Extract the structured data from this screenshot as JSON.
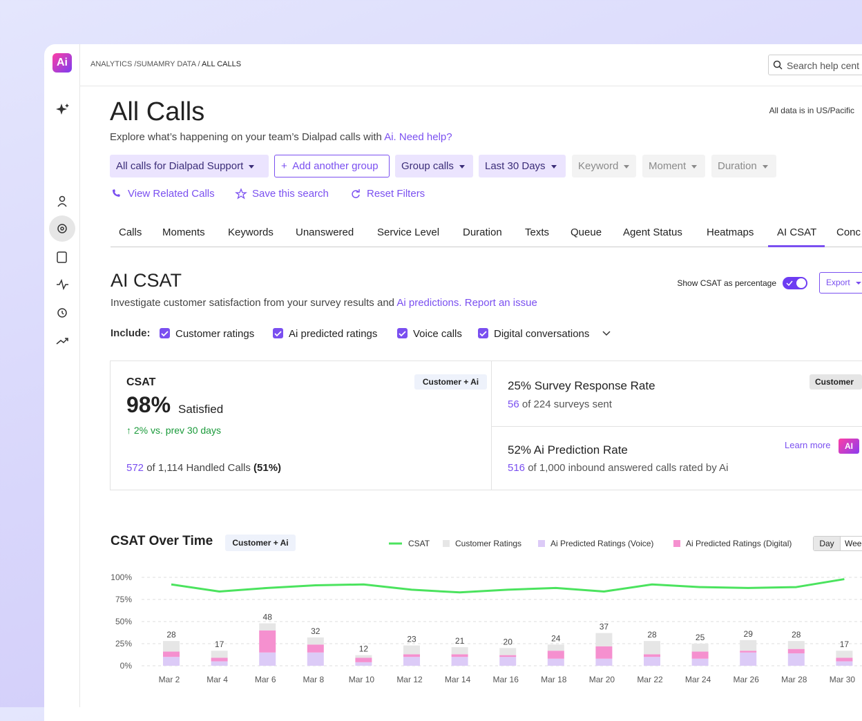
{
  "logo": "Ai",
  "breadcrumb": [
    "ANALYTICS",
    "SUMAMRY DATA",
    "ALL CALLS"
  ],
  "search_placeholder": "Search help cent",
  "header": {
    "title": "All Calls",
    "subtitle": "Explore what’s happening on your team’s Dialpad calls with",
    "subtitle_link": "Ai.",
    "help_link": "Need help?",
    "timezone": "All data is in US/Pacific"
  },
  "filters": [
    "All calls for Dialpad Support",
    "Add another group",
    "Group calls",
    "Last 30 Days",
    "Keyword",
    "Moment",
    "Duration"
  ],
  "actions": [
    "View Related Calls",
    "Save this search",
    "Reset Filters"
  ],
  "tabs": [
    "Calls",
    "Moments",
    "Keywords",
    "Unanswered",
    "Service Level",
    "Duration",
    "Texts",
    "Queue",
    "Agent Status",
    "Heatmaps",
    "AI CSAT",
    "Conc"
  ],
  "section": {
    "title": "AI CSAT",
    "description": "Investigate customer satisfaction from your survey results and",
    "description_link": "Ai predictions.",
    "report_link": "Report an issue",
    "toggle_label": "Show CSAT as percentage",
    "export": "Export"
  },
  "include": {
    "label": "Include:",
    "options": [
      "Customer ratings",
      "Ai predicted ratings",
      "Voice calls",
      "Digital conversations"
    ]
  },
  "csat_card": {
    "label": "CSAT",
    "badge": "Customer + Ai",
    "value": "98%",
    "value_suffix": "Satisfied",
    "change": "2% vs. prev 30 days",
    "handled_count": "572",
    "handled_text": "of 1,114 Handled Calls",
    "handled_pct": "(51%)"
  },
  "survey_card": {
    "title": "25% Survey Response Rate",
    "badge": "Customer",
    "count": "56",
    "text": "of 224 surveys sent"
  },
  "prediction_card": {
    "title": "52% Ai Prediction Rate",
    "learn_more": "Learn more",
    "badge": "AI",
    "count": "516",
    "text": "of 1,000 inbound answered calls rated by Ai"
  },
  "chart_section": {
    "title": "CSAT Over Time",
    "badge": "Customer + Ai",
    "periods": [
      "Day",
      "Wee"
    ]
  },
  "chart_data": {
    "type": "combo",
    "categories": [
      "Mar 2",
      "Mar 4",
      "Mar 6",
      "Mar 8",
      "Mar 10",
      "Mar 12",
      "Mar 14",
      "Mar 16",
      "Mar 18",
      "Mar 20",
      "Mar 22",
      "Mar 24",
      "Mar 26",
      "Mar 28",
      "Mar 30"
    ],
    "series": [
      {
        "name": "CSAT",
        "color": "#4be35e",
        "values": [
          92,
          84,
          88,
          91,
          92,
          86,
          83,
          86,
          88,
          84,
          92,
          89,
          88,
          89,
          98
        ]
      },
      {
        "name": "Customer Ratings",
        "color": "#e6e6e6",
        "values": [
          12,
          8,
          8,
          8,
          3,
          10,
          8,
          8,
          7,
          15,
          15,
          9,
          12,
          9,
          8
        ]
      },
      {
        "name": "Ai Predicted Ratings (Voice)",
        "color": "#dccbf7",
        "values": [
          10,
          5,
          15,
          15,
          4,
          10,
          10,
          10,
          8,
          8,
          10,
          8,
          15,
          14,
          5
        ]
      },
      {
        "name": "Ai Predicted Ratings (Digital)",
        "color": "#f590cf",
        "values": [
          6,
          4,
          25,
          9,
          5,
          3,
          3,
          2,
          9,
          14,
          3,
          8,
          2,
          5,
          4
        ]
      }
    ],
    "total_labels": [
      28,
      17,
      48,
      32,
      12,
      23,
      21,
      20,
      24,
      37,
      28,
      25,
      29,
      28,
      17
    ],
    "ylim": [
      0,
      100
    ],
    "yticks": [
      {
        "value": 0,
        "label": "0%"
      },
      {
        "value": 25,
        "label": "25%"
      },
      {
        "value": 50,
        "label": "50%"
      },
      {
        "value": 75,
        "label": "75%"
      },
      {
        "value": 100,
        "label": "100%"
      }
    ],
    "grid": true
  }
}
